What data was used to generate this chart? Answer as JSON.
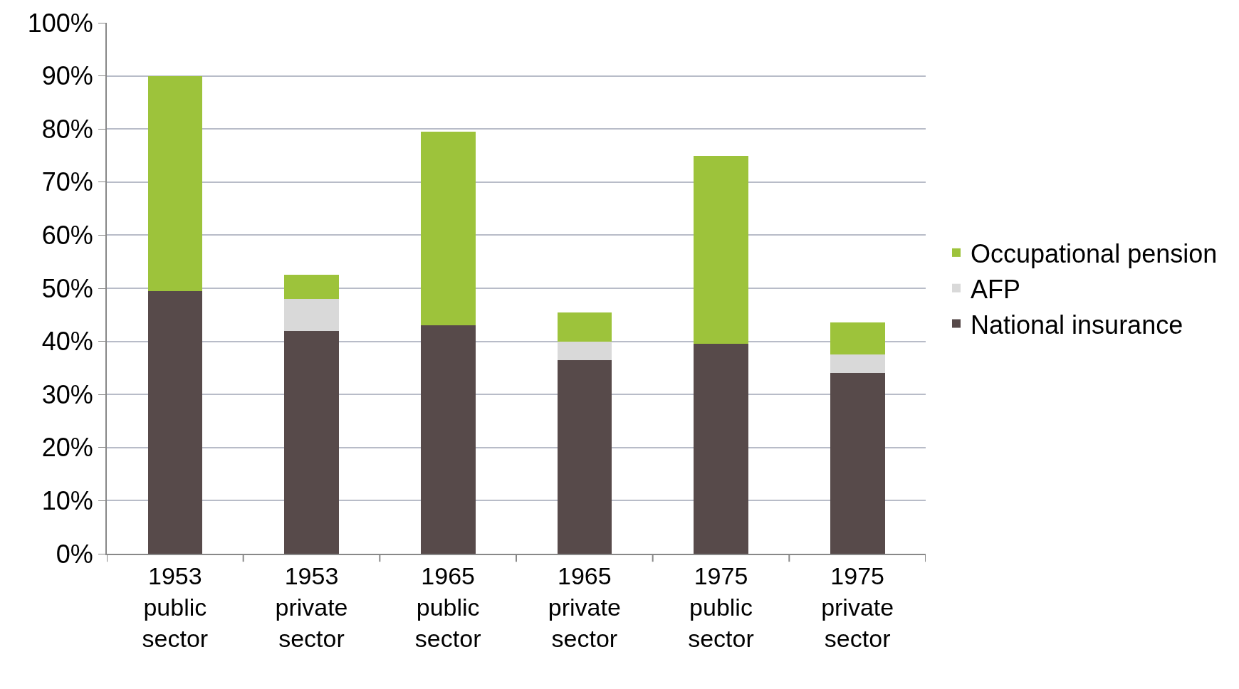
{
  "chart_data": {
    "type": "bar",
    "stacked": true,
    "categories": [
      "1953 public sector",
      "1953 private sector",
      "1965 public sector",
      "1965 private sector",
      "1975 public sector",
      "1975 private sector"
    ],
    "series": [
      {
        "name": "National insurance",
        "color": "#574a4a",
        "values": [
          49.5,
          42,
          43,
          36.5,
          39.5,
          34
        ]
      },
      {
        "name": "AFP",
        "color": "#d9d9d9",
        "values": [
          null,
          6,
          null,
          3.5,
          null,
          3.5
        ]
      },
      {
        "name": "Occupational pension",
        "color": "#9dc33b",
        "values": [
          40.5,
          4.5,
          36.5,
          5.5,
          35.5,
          6
        ]
      }
    ],
    "ylim": [
      0,
      100
    ],
    "yticks": [
      {
        "value": 0,
        "label": "0%"
      },
      {
        "value": 10,
        "label": "10%"
      },
      {
        "value": 20,
        "label": "20%"
      },
      {
        "value": 30,
        "label": "30%"
      },
      {
        "value": 40,
        "label": "40%"
      },
      {
        "value": 50,
        "label": "50%"
      },
      {
        "value": 60,
        "label": "60%"
      },
      {
        "value": 70,
        "label": "70%"
      },
      {
        "value": 80,
        "label": "80%"
      },
      {
        "value": 90,
        "label": "90%"
      },
      {
        "value": 100,
        "label": "100%"
      }
    ],
    "grid": "y",
    "legend": "right"
  }
}
